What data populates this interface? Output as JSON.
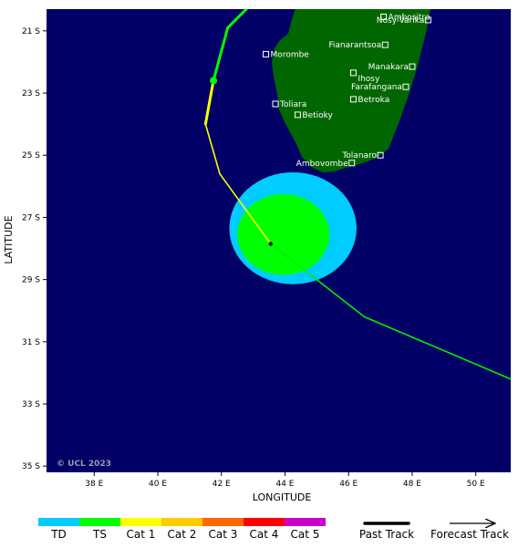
{
  "chart_data": {
    "type": "map",
    "xlabel": "LONGITUDE",
    "ylabel": "LATITUDE",
    "xlim": [
      36.5,
      51.1
    ],
    "ylim": [
      -35.2,
      -20.3
    ],
    "x_ticks": [
      {
        "value": 38,
        "label": "38 E"
      },
      {
        "value": 40,
        "label": "40 E"
      },
      {
        "value": 42,
        "label": "42 E"
      },
      {
        "value": 44,
        "label": "44 E"
      },
      {
        "value": 46,
        "label": "46 E"
      },
      {
        "value": 48,
        "label": "48 E"
      },
      {
        "value": 50,
        "label": "50 E"
      }
    ],
    "y_ticks": [
      {
        "value": -21,
        "label": "21 S"
      },
      {
        "value": -23,
        "label": "23 S"
      },
      {
        "value": -25,
        "label": "25 S"
      },
      {
        "value": -27,
        "label": "27 S"
      },
      {
        "value": -29,
        "label": "29 S"
      },
      {
        "value": -31,
        "label": "31 S"
      },
      {
        "value": -33,
        "label": "33 S"
      },
      {
        "value": -35,
        "label": "35 S"
      }
    ],
    "cities": [
      {
        "name": "Ambositra",
        "lon": 47.1,
        "lat": -20.55
      },
      {
        "name": "Nosy-Varika",
        "lon": 48.5,
        "lat": -20.65
      },
      {
        "name": "Fianarantsoa",
        "lon": 47.15,
        "lat": -21.45
      },
      {
        "name": "Morombe",
        "lon": 43.4,
        "lat": -21.75
      },
      {
        "name": "Manakara",
        "lon": 48.0,
        "lat": -22.15
      },
      {
        "name": "Ihosy",
        "lon": 46.15,
        "lat": -22.35
      },
      {
        "name": "Farafangana",
        "lon": 47.8,
        "lat": -22.8
      },
      {
        "name": "Betroka",
        "lon": 46.15,
        "lat": -23.2
      },
      {
        "name": "Toliara",
        "lon": 43.7,
        "lat": -23.35
      },
      {
        "name": "Betioky",
        "lon": 44.4,
        "lat": -23.7
      },
      {
        "name": "Tolanaro",
        "lon": 47.0,
        "lat": -25.0
      },
      {
        "name": "Ambovombe",
        "lon": 46.1,
        "lat": -25.25
      }
    ],
    "past_track": [
      {
        "lon": 44.05,
        "lat": -19.0,
        "category": "Cat 1"
      },
      {
        "lon": 42.2,
        "lat": -20.9,
        "category": "TS"
      },
      {
        "lon": 41.75,
        "lat": -22.6,
        "category": "TS"
      },
      {
        "lon": 41.5,
        "lat": -24.0,
        "category": "Cat 1"
      },
      {
        "lon": 41.95,
        "lat": -25.6,
        "category": "Cat 1"
      },
      {
        "lon": 43.55,
        "lat": -27.85,
        "category": "Cat 1"
      }
    ],
    "past_marker": {
      "lon": 41.75,
      "lat": -22.6,
      "category": "TS"
    },
    "forecast_track": [
      {
        "lon": 43.55,
        "lat": -27.85
      },
      {
        "lon": 46.5,
        "lat": -30.2
      },
      {
        "lon": 51.1,
        "lat": -32.2
      }
    ],
    "current_position": {
      "lon": 43.55,
      "lat": -27.85
    },
    "wind_swaths": [
      {
        "category": "TD",
        "center_lon": 44.25,
        "center_lat": -27.35,
        "radius_lon": 2.0,
        "radius_lat": 1.8
      },
      {
        "category": "TS",
        "center_lon": 43.95,
        "center_lat": -27.55,
        "radius_lon": 1.45,
        "radius_lat": 1.3
      }
    ],
    "copyright": "© UCL 2023",
    "legend": {
      "categories": [
        {
          "label": "TD",
          "color": "#00ccff"
        },
        {
          "label": "TS",
          "color": "#00ff00"
        },
        {
          "label": "Cat 1",
          "color": "#ffff00"
        },
        {
          "label": "Cat 2",
          "color": "#ffcc00"
        },
        {
          "label": "Cat 3",
          "color": "#ff6600"
        },
        {
          "label": "Cat 4",
          "color": "#ff0000"
        },
        {
          "label": "Cat 5",
          "color": "#cc00cc"
        }
      ],
      "past_track_label": "Past Track",
      "forecast_track_label": "Forecast Track"
    },
    "colors": {
      "ocean": "#000066",
      "land": "#006600",
      "forecast_line": "#00ee00"
    }
  }
}
